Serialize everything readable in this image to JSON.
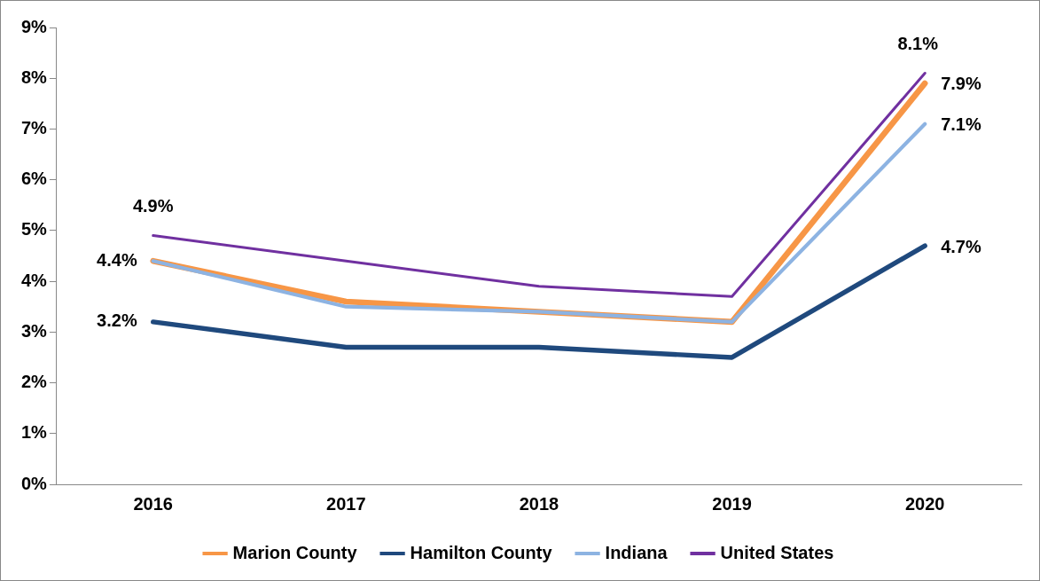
{
  "chart_data": {
    "type": "line",
    "categories": [
      "2016",
      "2017",
      "2018",
      "2019",
      "2020"
    ],
    "series": [
      {
        "name": "Marion County",
        "color": "#f79646",
        "values": [
          4.4,
          3.6,
          3.4,
          3.2,
          7.9
        ],
        "value_labels": [
          "4.4%",
          null,
          null,
          null,
          "7.9%"
        ]
      },
      {
        "name": "Hamilton County",
        "color": "#1f497d",
        "values": [
          3.2,
          2.7,
          2.7,
          2.5,
          4.7
        ],
        "value_labels": [
          "3.2%",
          null,
          null,
          null,
          "4.7%"
        ]
      },
      {
        "name": "Indiana",
        "color": "#8db3e2",
        "values": [
          4.4,
          3.5,
          3.4,
          3.2,
          7.1
        ],
        "value_labels": [
          null,
          null,
          null,
          null,
          "7.1%"
        ]
      },
      {
        "name": "United States",
        "color": "#7030a0",
        "values": [
          4.9,
          4.4,
          3.9,
          3.7,
          8.1
        ],
        "value_labels": [
          "4.9%",
          null,
          null,
          null,
          "8.1%"
        ]
      }
    ],
    "ylim": [
      0,
      9
    ],
    "yticks": [
      {
        "value": 0,
        "label": "0%"
      },
      {
        "value": 1,
        "label": "1%"
      },
      {
        "value": 2,
        "label": "2%"
      },
      {
        "value": 3,
        "label": "3%"
      },
      {
        "value": 4,
        "label": "4%"
      },
      {
        "value": 5,
        "label": "5%"
      },
      {
        "value": 6,
        "label": "6%"
      },
      {
        "value": 7,
        "label": "7%"
      },
      {
        "value": 8,
        "label": "8%"
      },
      {
        "value": 9,
        "label": "9%"
      }
    ],
    "grid": false,
    "legend": "bottom",
    "marker": "none",
    "line_style": "solid"
  }
}
